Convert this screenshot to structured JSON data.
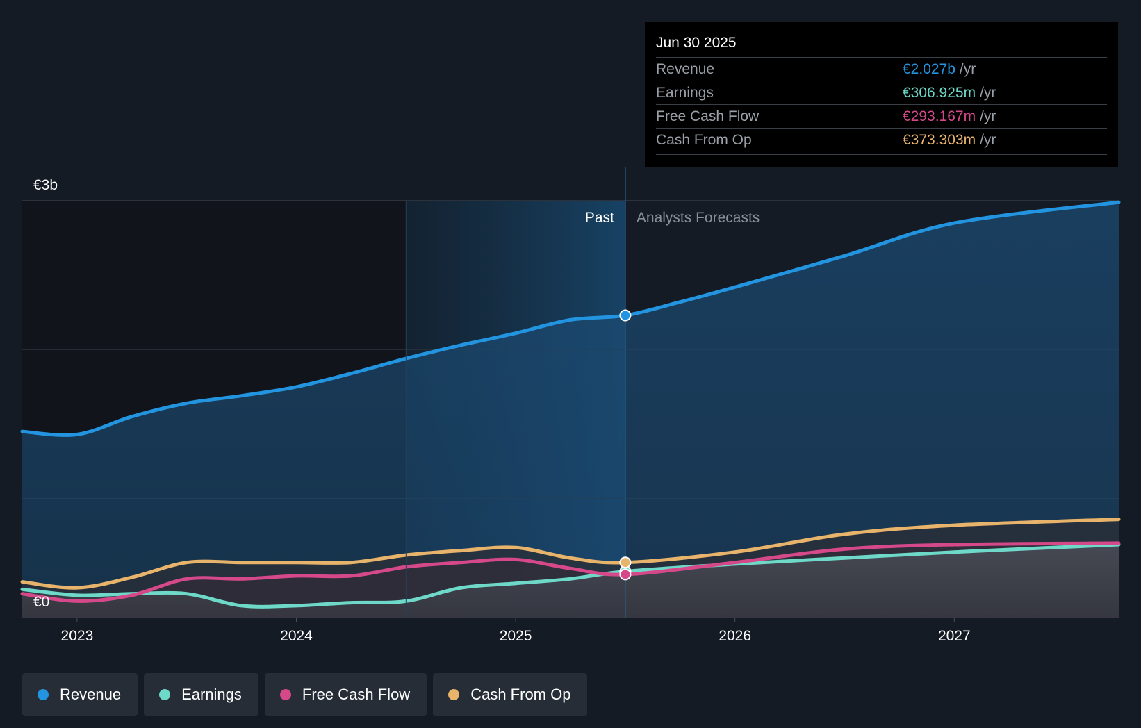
{
  "colors": {
    "revenue": "#2394e0",
    "earnings": "#6ed9c8",
    "fcf": "#d5498a",
    "cfo": "#e8b36a",
    "background": "#151b24"
  },
  "tooltip": {
    "date": "Jun 30 2025",
    "unit": "/yr",
    "rows": [
      {
        "label": "Revenue",
        "value": "€2.027b"
      },
      {
        "label": "Earnings",
        "value": "€306.925m"
      },
      {
        "label": "Free Cash Flow",
        "value": "€293.167m"
      },
      {
        "label": "Cash From Op",
        "value": "€373.303m"
      }
    ]
  },
  "legend": [
    {
      "label": "Revenue"
    },
    {
      "label": "Earnings"
    },
    {
      "label": "Free Cash Flow"
    },
    {
      "label": "Cash From Op"
    }
  ],
  "chart_data": {
    "type": "area",
    "y_unit": "€b",
    "ylim": [
      0,
      2.8
    ],
    "y_ticks": [
      {
        "value": 0,
        "label": "€0"
      },
      {
        "value": 2.8,
        "label": "€3b"
      }
    ],
    "xlim": [
      2022.75,
      2027.75
    ],
    "x_ticks": [
      {
        "value": 2023,
        "label": "2023"
      },
      {
        "value": 2024,
        "label": "2024"
      },
      {
        "value": 2025,
        "label": "2025"
      },
      {
        "value": 2026,
        "label": "2026"
      },
      {
        "value": 2027,
        "label": "2027"
      }
    ],
    "divider_x": 2025.5,
    "highlight_start_x": 2024.5,
    "past_label": "Past",
    "forecast_label": "Analysts Forecasts",
    "series": [
      {
        "name": "Revenue",
        "color_key": "revenue",
        "points": [
          [
            2022.75,
            1.25
          ],
          [
            2023.0,
            1.23
          ],
          [
            2023.25,
            1.35
          ],
          [
            2023.5,
            1.44
          ],
          [
            2023.75,
            1.49
          ],
          [
            2024.0,
            1.55
          ],
          [
            2024.25,
            1.64
          ],
          [
            2024.5,
            1.74
          ],
          [
            2024.75,
            1.83
          ],
          [
            2025.0,
            1.91
          ],
          [
            2025.25,
            2.0
          ],
          [
            2025.5,
            2.03
          ],
          [
            2025.75,
            2.12
          ],
          [
            2026.0,
            2.22
          ],
          [
            2026.5,
            2.43
          ],
          [
            2027.0,
            2.65
          ],
          [
            2027.75,
            2.79
          ]
        ]
      },
      {
        "name": "Earnings",
        "color_key": "earnings",
        "points": [
          [
            2022.75,
            0.19
          ],
          [
            2023.0,
            0.15
          ],
          [
            2023.25,
            0.16
          ],
          [
            2023.5,
            0.16
          ],
          [
            2023.75,
            0.08
          ],
          [
            2024.0,
            0.08
          ],
          [
            2024.25,
            0.1
          ],
          [
            2024.5,
            0.11
          ],
          [
            2024.75,
            0.2
          ],
          [
            2025.0,
            0.23
          ],
          [
            2025.25,
            0.26
          ],
          [
            2025.5,
            0.31
          ],
          [
            2026.0,
            0.36
          ],
          [
            2026.5,
            0.4
          ],
          [
            2027.0,
            0.44
          ],
          [
            2027.75,
            0.49
          ]
        ]
      },
      {
        "name": "Free Cash Flow",
        "color_key": "fcf",
        "points": [
          [
            2022.75,
            0.16
          ],
          [
            2023.0,
            0.11
          ],
          [
            2023.25,
            0.15
          ],
          [
            2023.5,
            0.26
          ],
          [
            2023.75,
            0.26
          ],
          [
            2024.0,
            0.28
          ],
          [
            2024.25,
            0.28
          ],
          [
            2024.5,
            0.34
          ],
          [
            2024.75,
            0.37
          ],
          [
            2025.0,
            0.39
          ],
          [
            2025.25,
            0.33
          ],
          [
            2025.5,
            0.29
          ],
          [
            2026.0,
            0.37
          ],
          [
            2026.5,
            0.46
          ],
          [
            2027.0,
            0.49
          ],
          [
            2027.75,
            0.5
          ]
        ]
      },
      {
        "name": "Cash From Op",
        "color_key": "cfo",
        "points": [
          [
            2022.75,
            0.24
          ],
          [
            2023.0,
            0.2
          ],
          [
            2023.25,
            0.27
          ],
          [
            2023.5,
            0.37
          ],
          [
            2023.75,
            0.37
          ],
          [
            2024.0,
            0.37
          ],
          [
            2024.25,
            0.37
          ],
          [
            2024.5,
            0.42
          ],
          [
            2024.75,
            0.45
          ],
          [
            2025.0,
            0.47
          ],
          [
            2025.25,
            0.4
          ],
          [
            2025.5,
            0.37
          ],
          [
            2026.0,
            0.44
          ],
          [
            2026.5,
            0.56
          ],
          [
            2027.0,
            0.62
          ],
          [
            2027.75,
            0.66
          ]
        ]
      }
    ]
  }
}
